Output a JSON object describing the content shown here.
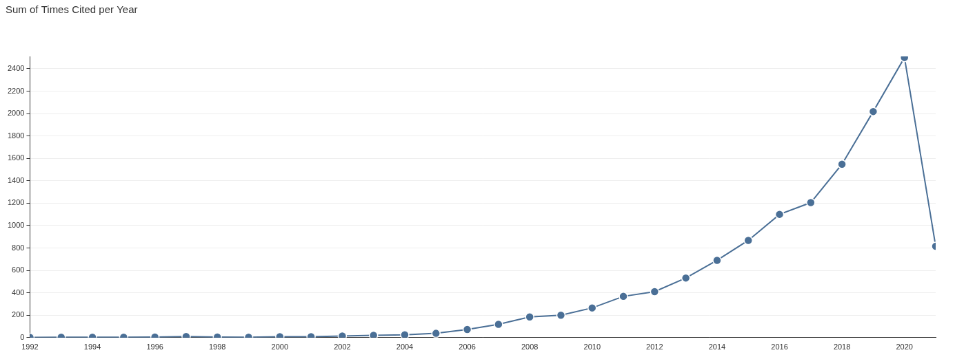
{
  "chart_data": {
    "type": "line",
    "title": "Sum of Times Cited per Year",
    "x": [
      1992,
      1993,
      1994,
      1995,
      1996,
      1997,
      1998,
      1999,
      2000,
      2001,
      2002,
      2003,
      2004,
      2005,
      2006,
      2007,
      2008,
      2009,
      2010,
      2011,
      2012,
      2013,
      2014,
      2015,
      2016,
      2017,
      2018,
      2019,
      2020,
      2021
    ],
    "values": [
      2,
      3,
      3,
      4,
      5,
      10,
      5,
      4,
      8,
      8,
      14,
      20,
      25,
      38,
      72,
      118,
      185,
      200,
      265,
      368,
      410,
      532,
      690,
      868,
      1100,
      1205,
      1548,
      2018,
      2500,
      815
    ],
    "color": "#4a6f96",
    "marker": "circle",
    "xlim": [
      1992,
      2021
    ],
    "xticks": [
      1992,
      1994,
      1996,
      1998,
      2000,
      2002,
      2004,
      2006,
      2008,
      2010,
      2012,
      2014,
      2016,
      2018,
      2020
    ],
    "ylim": [
      0,
      2510
    ],
    "yticks": [
      0,
      200,
      400,
      600,
      800,
      1000,
      1200,
      1400,
      1600,
      1800,
      2000,
      2200,
      2400
    ],
    "grid": true
  }
}
